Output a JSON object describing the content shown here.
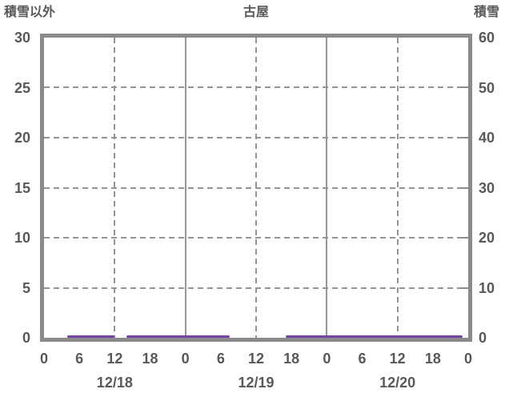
{
  "header": {
    "left_axis_title": "積雪以外",
    "chart_title": "古屋",
    "right_axis_title": "積雪"
  },
  "colors": {
    "background": "#ffffff",
    "frame": "#8a8a8a",
    "gridline": "#949494",
    "text": "#595959",
    "series_purple": "#7445a5"
  },
  "chart_data": {
    "type": "line",
    "title": "古屋",
    "left_axis": {
      "title": "積雪以外",
      "min": 0,
      "max": 30,
      "ticks": [
        {
          "value": 30,
          "label": "30"
        },
        {
          "value": 25,
          "label": "25"
        },
        {
          "value": 20,
          "label": "20"
        },
        {
          "value": 15,
          "label": "15"
        },
        {
          "value": 10,
          "label": "10"
        },
        {
          "value": 5,
          "label": "5"
        },
        {
          "value": 0,
          "label": "0"
        }
      ]
    },
    "right_axis": {
      "title": "積雪",
      "min": 0,
      "max": 60,
      "ticks": [
        {
          "value": 60,
          "label": "60"
        },
        {
          "value": 50,
          "label": "50"
        },
        {
          "value": 40,
          "label": "40"
        },
        {
          "value": 30,
          "label": "30"
        },
        {
          "value": 20,
          "label": "20"
        },
        {
          "value": 10,
          "label": "10"
        },
        {
          "value": 0,
          "label": "0"
        }
      ]
    },
    "x_axis": {
      "unit": "hour",
      "min": 0,
      "max": 72,
      "tick_interval": 6,
      "hour_ticks": [
        {
          "hour": 0,
          "label": "0"
        },
        {
          "hour": 6,
          "label": "6"
        },
        {
          "hour": 12,
          "label": "12"
        },
        {
          "hour": 18,
          "label": "18"
        },
        {
          "hour": 24,
          "label": "0"
        },
        {
          "hour": 30,
          "label": "6"
        },
        {
          "hour": 36,
          "label": "12"
        },
        {
          "hour": 42,
          "label": "18"
        },
        {
          "hour": 48,
          "label": "0"
        },
        {
          "hour": 54,
          "label": "6"
        },
        {
          "hour": 60,
          "label": "12"
        },
        {
          "hour": 66,
          "label": "18"
        },
        {
          "hour": 72,
          "label": "0"
        }
      ],
      "date_ticks": [
        {
          "hour": 12,
          "label": "12/18"
        },
        {
          "hour": 36,
          "label": "12/19"
        },
        {
          "hour": 60,
          "label": "12/20"
        }
      ]
    },
    "gridlines": {
      "horizontal_left_values": [
        25,
        20,
        15,
        10,
        5
      ],
      "vertical_dashed_hours": [
        12,
        36,
        60
      ],
      "vertical_solid_hours": [
        24,
        48
      ]
    },
    "series": [
      {
        "name": "積雪",
        "axis": "right",
        "color": "#7445a5",
        "value": 0,
        "segments_hours": [
          [
            4,
            12
          ],
          [
            14,
            31.5
          ],
          [
            41,
            71
          ]
        ]
      }
    ]
  }
}
